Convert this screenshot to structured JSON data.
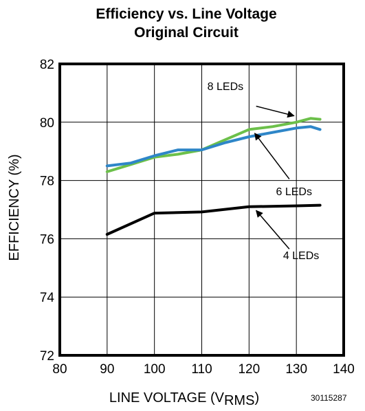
{
  "chart_data": {
    "type": "line",
    "title": "Efficiency vs. Line Voltage",
    "subtitle": "Original Circuit",
    "xlabel": "LINE VOLTAGE (V",
    "xlabel_sub": "RMS",
    "xlabel_close": ")",
    "ylabel": "EFFICIENCY (%)",
    "xlim": [
      80,
      140
    ],
    "ylim": [
      72,
      82
    ],
    "xticks": [
      80,
      90,
      100,
      110,
      120,
      130,
      140
    ],
    "yticks": [
      72,
      74,
      76,
      78,
      80,
      82
    ],
    "grid": true,
    "figure_id": "30115287",
    "series": [
      {
        "name": "8 LEDs",
        "color": "#6cc04a",
        "x": [
          90,
          95,
          100,
          105,
          110,
          115,
          120,
          125,
          130,
          133,
          135
        ],
        "y": [
          78.3,
          78.55,
          78.8,
          78.9,
          79.05,
          79.4,
          79.75,
          79.85,
          80.0,
          80.13,
          80.1
        ]
      },
      {
        "name": "6 LEDs",
        "color": "#2e86c8",
        "x": [
          90,
          95,
          100,
          105,
          110,
          115,
          120,
          125,
          130,
          133,
          135
        ],
        "y": [
          78.5,
          78.6,
          78.85,
          79.05,
          79.05,
          79.3,
          79.5,
          79.65,
          79.8,
          79.85,
          79.75
        ]
      },
      {
        "name": "4 LEDs",
        "color": "#000000",
        "x": [
          90,
          100,
          110,
          120,
          130,
          135
        ],
        "y": [
          76.15,
          76.88,
          76.92,
          77.1,
          77.13,
          77.15
        ]
      }
    ],
    "annotations": [
      {
        "label": "8 LEDs",
        "series": 0,
        "text_x": 115,
        "text_y": 81.1,
        "arrow_from": [
          121.5,
          80.55
        ],
        "arrow_to": [
          129.5,
          80.22
        ]
      },
      {
        "label": "6 LEDs",
        "series": 1,
        "text_x": 129.5,
        "text_y": 77.5,
        "arrow_from": [
          128.5,
          78.05
        ],
        "arrow_to": [
          121.2,
          79.62
        ]
      },
      {
        "label": "4 LEDs",
        "series": 2,
        "text_x": 131,
        "text_y": 75.3,
        "arrow_from": [
          128.5,
          75.65
        ],
        "arrow_to": [
          121.5,
          76.97
        ]
      }
    ]
  }
}
